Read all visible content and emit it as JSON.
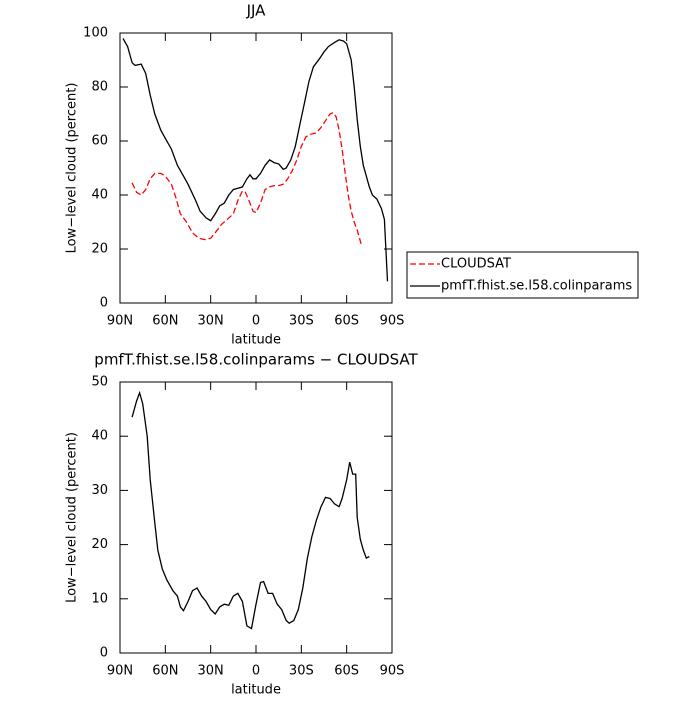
{
  "chart_data": [
    {
      "type": "line",
      "title": "JJA",
      "xlabel": "latitude",
      "ylabel": "Low−level cloud (percent)",
      "xlim": [
        90,
        -90
      ],
      "xticks": [
        {
          "value": 90,
          "label": "90N"
        },
        {
          "value": 60,
          "label": "60N"
        },
        {
          "value": 30,
          "label": "30N"
        },
        0,
        {
          "value": -30,
          "label": "30S"
        },
        {
          "value": -60,
          "label": "60S"
        },
        {
          "value": -90,
          "label": "90S"
        }
      ],
      "ylim": [
        0,
        100
      ],
      "yticks": [
        0,
        20,
        40,
        60,
        80,
        100
      ],
      "legend": "right",
      "series": [
        {
          "name": "CLOUDSAT",
          "color": "#ff0000",
          "linestyle": "dashed",
          "x": [
            82,
            79,
            76,
            73,
            70,
            67,
            63,
            60,
            56,
            53,
            50,
            46,
            42,
            38,
            34,
            30,
            27,
            23,
            19,
            15,
            12,
            9,
            7,
            4,
            2,
            0,
            -3,
            -6,
            -9,
            -12,
            -15,
            -18,
            -21,
            -24,
            -27,
            -30,
            -33,
            -36,
            -40,
            -43,
            -46,
            -49,
            -51,
            -53,
            -55,
            -57,
            -59,
            -61,
            -63,
            -65,
            -67,
            -70
          ],
          "values": [
            44.5,
            41,
            40,
            42,
            46,
            48,
            48,
            47,
            44,
            39,
            33,
            30,
            26,
            24,
            23.5,
            24,
            26,
            29,
            31,
            33,
            38,
            41.5,
            41,
            37,
            34,
            33.5,
            37,
            42,
            43,
            43.5,
            43.5,
            44,
            46,
            49,
            53,
            58,
            61.5,
            62.5,
            63,
            65,
            67.5,
            70,
            70.5,
            69,
            64,
            57,
            48,
            40,
            34,
            30,
            27,
            21
          ]
        },
        {
          "name": "pmfT.fhist.se.l58.colinparams",
          "color": "#000000",
          "linestyle": "solid",
          "x": [
            88,
            85,
            82,
            80,
            76,
            73,
            70,
            67,
            63,
            60,
            56,
            52,
            48,
            45,
            40,
            37,
            33,
            30,
            27,
            24,
            21,
            18,
            15,
            12,
            9,
            6,
            4,
            2,
            0,
            -3,
            -6,
            -9,
            -12,
            -15,
            -18,
            -20,
            -23,
            -26,
            -29,
            -32,
            -35,
            -38,
            -42,
            -45,
            -48,
            -52,
            -55,
            -58,
            -60,
            -63,
            -65,
            -67,
            -69,
            -71,
            -73,
            -75,
            -77,
            -80,
            -83,
            -85,
            -87
          ],
          "values": [
            98,
            95,
            89,
            88,
            88.5,
            85,
            77,
            70,
            64,
            61,
            57,
            51,
            47,
            44,
            38,
            34,
            31.5,
            30.5,
            33,
            36,
            37,
            40,
            42,
            42.5,
            43,
            46,
            47.5,
            46,
            46,
            48,
            51,
            53,
            52,
            51.5,
            49.5,
            50,
            53,
            58,
            66,
            74,
            82,
            87.5,
            90.5,
            93,
            95,
            96.5,
            97.5,
            97,
            96,
            90,
            80,
            68,
            58,
            51,
            47,
            43,
            40,
            38.5,
            35,
            31,
            8
          ]
        }
      ]
    },
    {
      "type": "line",
      "title": "pmfT.fhist.se.l58.colinparams − CLOUDSAT",
      "xlabel": "latitude",
      "ylabel": "Low−level cloud (percent)",
      "xlim": [
        90,
        -90
      ],
      "xticks": [
        {
          "value": 90,
          "label": "90N"
        },
        {
          "value": 60,
          "label": "60N"
        },
        {
          "value": 30,
          "label": "30N"
        },
        0,
        {
          "value": -30,
          "label": "30S"
        },
        {
          "value": -60,
          "label": "60S"
        },
        {
          "value": -90,
          "label": "90S"
        }
      ],
      "ylim": [
        0,
        50
      ],
      "yticks": [
        0,
        10,
        20,
        30,
        40,
        50
      ],
      "series": [
        {
          "color": "#000000",
          "linestyle": "solid",
          "x": [
            82,
            79,
            77,
            75,
            72,
            70,
            67,
            65,
            62,
            59,
            55,
            52,
            50,
            48,
            45,
            42,
            39,
            36,
            33,
            30,
            27,
            24,
            21,
            18,
            15,
            12,
            9,
            6,
            3,
            0,
            -3,
            -5,
            -8,
            -11,
            -14,
            -17,
            -20,
            -22,
            -25,
            -28,
            -31,
            -34,
            -37,
            -40,
            -43,
            -46,
            -49,
            -52,
            -55,
            -57,
            -60,
            -62,
            -64,
            -66,
            -67,
            -69,
            -71,
            -73,
            -75
          ],
          "values": [
            43.5,
            46.5,
            48,
            46,
            40,
            32,
            24,
            19,
            15.5,
            13.5,
            11.5,
            10.5,
            8.5,
            7.8,
            9.5,
            11.5,
            12,
            10.5,
            9.5,
            8,
            7.2,
            8.5,
            9,
            8.8,
            10.5,
            11,
            9.5,
            5,
            4.5,
            9,
            13,
            13.2,
            11,
            11,
            9,
            8,
            6,
            5.5,
            6,
            8,
            12,
            17.5,
            21.5,
            24.5,
            27,
            28.7,
            28.5,
            27.5,
            27,
            28.5,
            32,
            35.2,
            33,
            33,
            25,
            21,
            19,
            17.5,
            17.8
          ]
        }
      ]
    }
  ]
}
